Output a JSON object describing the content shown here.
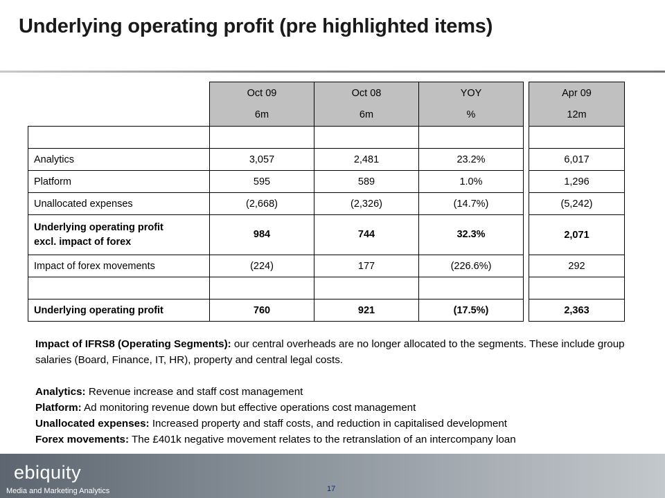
{
  "title": "Underlying operating profit (pre highlighted items)",
  "table": {
    "headers": [
      {
        "top": "Oct 09",
        "bottom": "6m"
      },
      {
        "top": "Oct 08",
        "bottom": "6m"
      },
      {
        "top": "YOY",
        "bottom": "%"
      }
    ],
    "rows": [
      {
        "label": "",
        "values": [
          "",
          "",
          ""
        ]
      },
      {
        "label": "Analytics",
        "values": [
          "3,057",
          "2,481",
          "23.2%"
        ]
      },
      {
        "label": "Platform",
        "values": [
          "595",
          "589",
          "1.0%"
        ]
      },
      {
        "label": "Unallocated expenses",
        "values": [
          "(2,668)",
          "(2,326)",
          "(14.7%)"
        ]
      },
      {
        "label_line1": "Underlying operating profit",
        "label_line2": "excl. impact of forex",
        "values": [
          "984",
          "744",
          "32.3%"
        ]
      },
      {
        "label": "Impact of forex movements",
        "values": [
          "(224)",
          "177",
          "(226.6%)"
        ]
      },
      {
        "label": "",
        "values": [
          "",
          "",
          ""
        ]
      },
      {
        "label": "Underlying operating profit",
        "values": [
          "760",
          "921",
          "(17.5%)"
        ]
      }
    ]
  },
  "side_table": {
    "header_top": "Apr 09",
    "header_bottom": "12m",
    "values": [
      "",
      "6,017",
      "1,296",
      "(5,242)",
      "2,071",
      "292",
      "",
      "2,363"
    ]
  },
  "notes": {
    "ifrs_label": "Impact of IFRS8 (Operating Segments):",
    "ifrs_text": " our central overheads are no longer allocated to the segments.  These include group salaries (Board, Finance, IT, HR), property and central legal costs.",
    "analytics_label": "Analytics:",
    "analytics_text": " Revenue increase and staff cost management",
    "platform_label": "Platform:",
    "platform_text": " Ad monitoring revenue down but effective operations cost management",
    "unallocated_label": "Unallocated expenses:",
    "unallocated_text": " Increased property and staff costs, and reduction in capitalised development",
    "forex_label": "Forex movements:",
    "forex_text": " The £401k negative movement relates to the retranslation of an intercompany loan"
  },
  "footer": {
    "logo": "ebiquity",
    "tagline": "Media and Marketing Analytics",
    "page_number": "17"
  }
}
